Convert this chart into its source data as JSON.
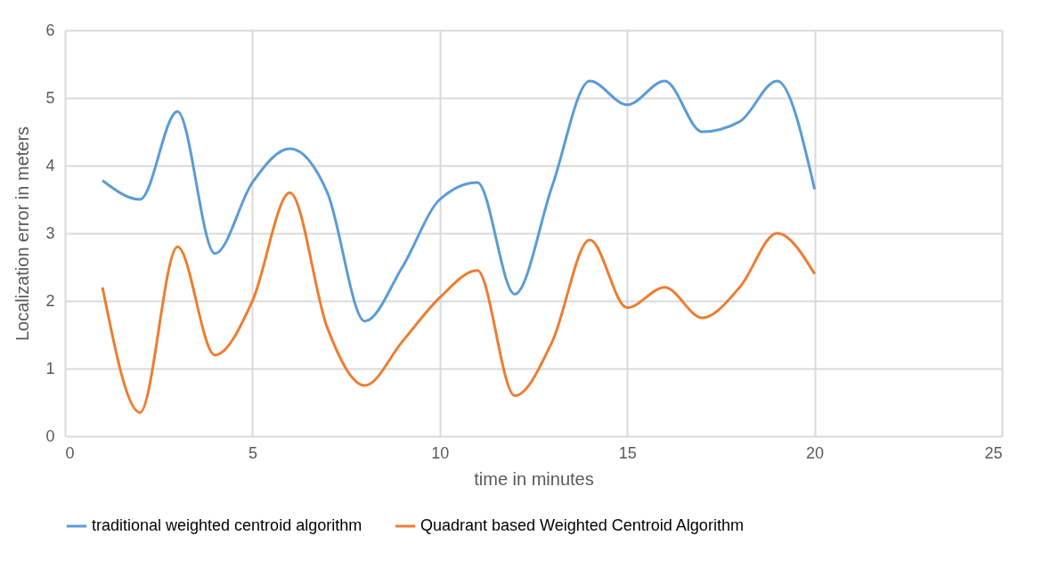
{
  "chart_data": {
    "type": "line",
    "xlabel": "time in minutes",
    "ylabel": "Localization error in meters",
    "x": [
      1,
      2,
      3,
      4,
      5,
      6,
      7,
      8,
      9,
      10,
      11,
      12,
      13,
      14,
      15,
      16,
      17,
      18,
      19,
      20
    ],
    "series": [
      {
        "name": "traditional weighted centroid algorithm",
        "color": "#5b9bd5",
        "values": [
          3.78,
          3.5,
          4.8,
          2.7,
          3.75,
          4.25,
          3.6,
          1.7,
          2.5,
          3.5,
          3.75,
          2.1,
          3.7,
          5.25,
          4.9,
          5.25,
          4.5,
          4.65,
          5.25,
          3.65
        ]
      },
      {
        "name": "Quadrant based Weighted Centroid Algorithm",
        "color": "#ed7d31",
        "values": [
          2.2,
          0.35,
          2.8,
          1.2,
          2.0,
          3.6,
          1.6,
          0.75,
          1.4,
          2.05,
          2.45,
          0.6,
          1.4,
          2.9,
          1.9,
          2.2,
          1.75,
          2.2,
          3.0,
          2.4
        ]
      }
    ],
    "xlim": [
      0,
      25
    ],
    "xticks": [
      0,
      5,
      10,
      15,
      20,
      25
    ],
    "ylim": [
      0,
      6
    ],
    "yticks": [
      0,
      1,
      2,
      3,
      4,
      5,
      6
    ],
    "grid": true,
    "legend": "bottom",
    "marker": "none",
    "line_style": "solid"
  }
}
